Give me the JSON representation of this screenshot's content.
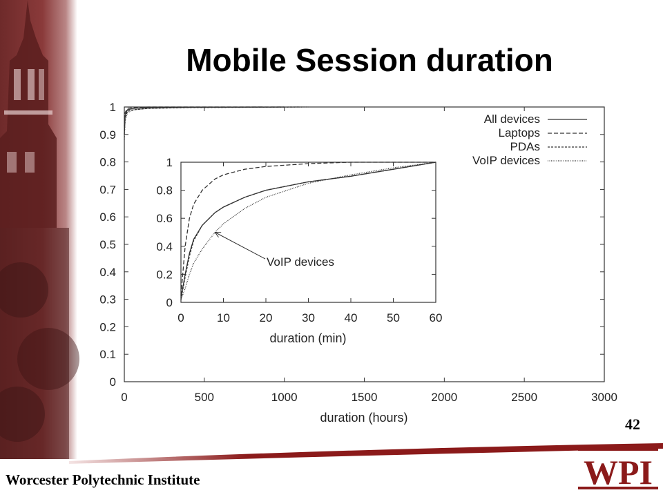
{
  "slide": {
    "title": "Mobile Session duration",
    "footer": "Worcester Polytechnic Institute",
    "page_number": "42",
    "logo_text": "WPI",
    "colors": {
      "maroon": "#8b1a1a",
      "line": "#333333",
      "background": "#ffffff"
    }
  },
  "chart_data": [
    {
      "type": "line",
      "xlabel": "duration (hours)",
      "ylabel": "",
      "xlim": [
        0,
        3000
      ],
      "ylim": [
        0,
        1
      ],
      "xticks": [
        0,
        500,
        1000,
        1500,
        2000,
        2500,
        3000
      ],
      "yticks": [
        0,
        0.1,
        0.2,
        0.3,
        0.4,
        0.5,
        0.6,
        0.7,
        0.8,
        0.9,
        1
      ],
      "ytick_labels": [
        "0",
        "0.1",
        "0.2",
        "0.3",
        "0.4",
        "0.5",
        "0.6",
        "0.7",
        "0.8",
        "0.9",
        "1"
      ],
      "legend_position": "top-right",
      "grid": false,
      "series": [
        {
          "name": "All devices",
          "dash": "solid",
          "x": [
            0,
            5,
            20,
            60,
            150,
            400,
            1000
          ],
          "y": [
            0.9,
            0.97,
            0.99,
            0.995,
            0.998,
            0.999,
            1
          ]
        },
        {
          "name": "Laptops",
          "dash": "dashed",
          "x": [
            0,
            5,
            20,
            60,
            150,
            400,
            1000
          ],
          "y": [
            0.93,
            0.98,
            0.995,
            0.998,
            1,
            1,
            1
          ]
        },
        {
          "name": "PDAs",
          "dash": "dashed-fine",
          "x": [
            0,
            5,
            20,
            60,
            150,
            400,
            1100
          ],
          "y": [
            0.9,
            0.96,
            0.985,
            0.99,
            0.995,
            0.998,
            1
          ]
        },
        {
          "name": "VoIP devices",
          "dash": "dotted",
          "x": [
            0,
            5,
            20,
            60,
            150,
            400,
            1150
          ],
          "y": [
            0.88,
            0.95,
            0.98,
            0.99,
            0.995,
            0.998,
            1
          ]
        }
      ]
    },
    {
      "type": "line",
      "xlabel": "duration (min)",
      "ylabel": "",
      "xlim": [
        0,
        60
      ],
      "ylim": [
        0,
        1
      ],
      "xticks": [
        0,
        10,
        20,
        30,
        40,
        50,
        60
      ],
      "yticks": [
        0,
        0.2,
        0.4,
        0.6,
        0.8,
        1
      ],
      "grid": false,
      "annotation": {
        "text": "VoIP devices",
        "points_to": [
          8,
          0.5
        ]
      },
      "series": [
        {
          "name": "All devices",
          "dash": "solid",
          "x": [
            0,
            1,
            2,
            3,
            5,
            8,
            10,
            15,
            20,
            30,
            40,
            50,
            60
          ],
          "y": [
            0.03,
            0.2,
            0.35,
            0.45,
            0.55,
            0.64,
            0.68,
            0.75,
            0.8,
            0.86,
            0.9,
            0.95,
            1
          ]
        },
        {
          "name": "Laptops",
          "dash": "dashed",
          "x": [
            0,
            1,
            2,
            3,
            5,
            8,
            10,
            15,
            20,
            25,
            30,
            40,
            60
          ],
          "y": [
            0.05,
            0.4,
            0.6,
            0.7,
            0.8,
            0.88,
            0.91,
            0.95,
            0.97,
            0.98,
            0.99,
            1,
            1
          ]
        },
        {
          "name": "PDAs",
          "dash": "dashed-fine",
          "x": [
            0,
            1,
            2,
            3,
            5,
            8,
            10,
            15,
            20,
            30,
            40,
            50,
            60
          ],
          "y": [
            0.02,
            0.18,
            0.33,
            0.44,
            0.55,
            0.64,
            0.68,
            0.75,
            0.8,
            0.86,
            0.9,
            0.95,
            1
          ]
        },
        {
          "name": "VoIP devices",
          "dash": "dotted",
          "x": [
            0,
            1,
            2,
            3,
            5,
            8,
            10,
            15,
            20,
            30,
            40,
            50,
            60
          ],
          "y": [
            0.02,
            0.1,
            0.2,
            0.28,
            0.38,
            0.5,
            0.56,
            0.67,
            0.75,
            0.85,
            0.91,
            0.96,
            1
          ]
        }
      ]
    }
  ]
}
